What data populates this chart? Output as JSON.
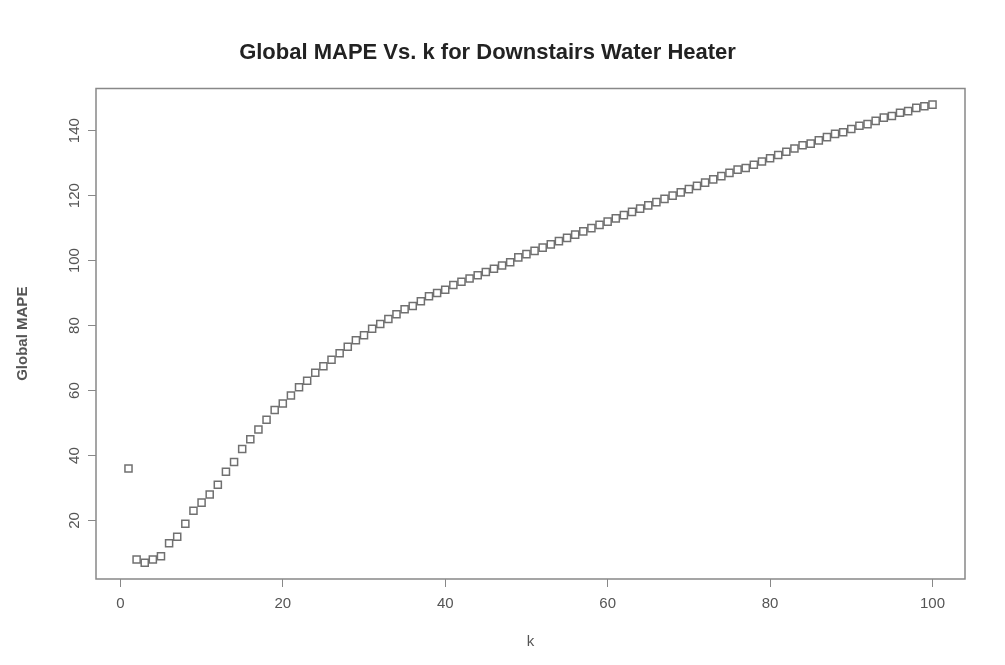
{
  "chart_data": {
    "type": "scatter",
    "title": "Global MAPE Vs. k for Downstairs Water Heater",
    "xlabel": "k",
    "ylabel": "Global MAPE",
    "x": [
      1,
      2,
      3,
      4,
      5,
      6,
      7,
      8,
      9,
      10,
      11,
      12,
      13,
      14,
      15,
      16,
      17,
      18,
      19,
      20,
      21,
      22,
      23,
      24,
      25,
      26,
      27,
      28,
      29,
      30,
      31,
      32,
      33,
      34,
      35,
      36,
      37,
      38,
      39,
      40,
      41,
      42,
      43,
      44,
      45,
      46,
      47,
      48,
      49,
      50,
      51,
      52,
      53,
      54,
      55,
      56,
      57,
      58,
      59,
      60,
      61,
      62,
      63,
      64,
      65,
      66,
      67,
      68,
      69,
      70,
      71,
      72,
      73,
      74,
      75,
      76,
      77,
      78,
      79,
      80,
      81,
      82,
      83,
      84,
      85,
      86,
      87,
      88,
      89,
      90,
      91,
      92,
      93,
      94,
      95,
      96,
      97,
      98,
      99,
      100
    ],
    "values": [
      36,
      8,
      7,
      8,
      9,
      13,
      15,
      19,
      23,
      25.5,
      28,
      31,
      35,
      38,
      42,
      45,
      48,
      51,
      54,
      56,
      58.5,
      61,
      63,
      65.5,
      67.5,
      69.5,
      71.5,
      73.5,
      75.5,
      77,
      79,
      80.5,
      82,
      83.5,
      85,
      86,
      87.5,
      89,
      90,
      91,
      92.5,
      93.5,
      94.5,
      95.5,
      96.5,
      97.5,
      98.5,
      99.5,
      101,
      102,
      103,
      104,
      105,
      106,
      107,
      108,
      109,
      110,
      111,
      112,
      113,
      114,
      115,
      116,
      117,
      118,
      119,
      120,
      121,
      122,
      123,
      124,
      125,
      126,
      127,
      128,
      128.5,
      129.5,
      130.5,
      131.5,
      132.5,
      133.5,
      134.5,
      135.5,
      136,
      137,
      138,
      139,
      139.5,
      140.5,
      141.5,
      142,
      143,
      144,
      144.5,
      145.5,
      146,
      147,
      147.5,
      148
    ],
    "color": "#707070",
    "marker": "square",
    "grid": false,
    "legend": false,
    "xlim": [
      -3,
      104
    ],
    "xticks": [
      0,
      20,
      40,
      60,
      80,
      100
    ],
    "ylim": [
      2,
      153
    ],
    "yticks": [
      20,
      40,
      60,
      80,
      100,
      120,
      140
    ]
  }
}
